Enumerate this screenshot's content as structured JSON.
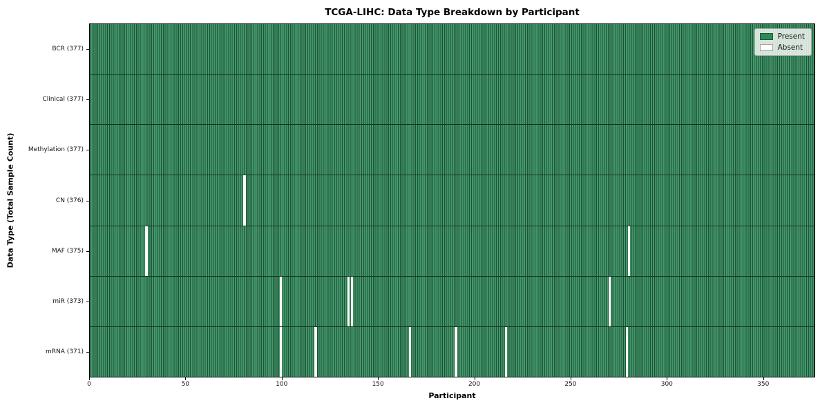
{
  "chart_data": {
    "type": "heatmap",
    "title": "TCGA-LIHC: Data Type Breakdown by Participant",
    "xlabel": "Participant",
    "ylabel": "Data Type (Total Sample Count)",
    "x_ticks": [
      0,
      50,
      100,
      150,
      200,
      250,
      300,
      350
    ],
    "x_max": 377,
    "n_participants": 377,
    "grid": false,
    "colors": {
      "present": "#2e8b57",
      "present_fill": "#3e9164",
      "cell_edge": "#1c5236",
      "absent": "#ffffff",
      "row_divider": "#12341f",
      "plot_border": "#000000"
    },
    "legend": {
      "position": "upper right",
      "items": [
        {
          "label": "Present",
          "color": "#2e8b57"
        },
        {
          "label": "Absent",
          "color": "#ffffff"
        }
      ]
    },
    "rows": [
      {
        "label": "BCR (377)",
        "data_type": "BCR",
        "total": 377,
        "absent_at": []
      },
      {
        "label": "Clinical (377)",
        "data_type": "Clinical",
        "total": 377,
        "absent_at": []
      },
      {
        "label": "Methylation (377)",
        "data_type": "Methylation",
        "total": 377,
        "absent_at": []
      },
      {
        "label": "CN (376)",
        "data_type": "CN",
        "total": 376,
        "absent_at": [
          80
        ]
      },
      {
        "label": "MAF (375)",
        "data_type": "MAF",
        "total": 375,
        "absent_at": [
          29,
          280
        ]
      },
      {
        "label": "miR (373)",
        "data_type": "miR",
        "total": 373,
        "absent_at": [
          99,
          134,
          136,
          270
        ]
      },
      {
        "label": "mRNA (371)",
        "data_type": "mRNA",
        "total": 371,
        "absent_at": [
          99,
          117,
          166,
          190,
          216,
          279
        ]
      }
    ]
  }
}
